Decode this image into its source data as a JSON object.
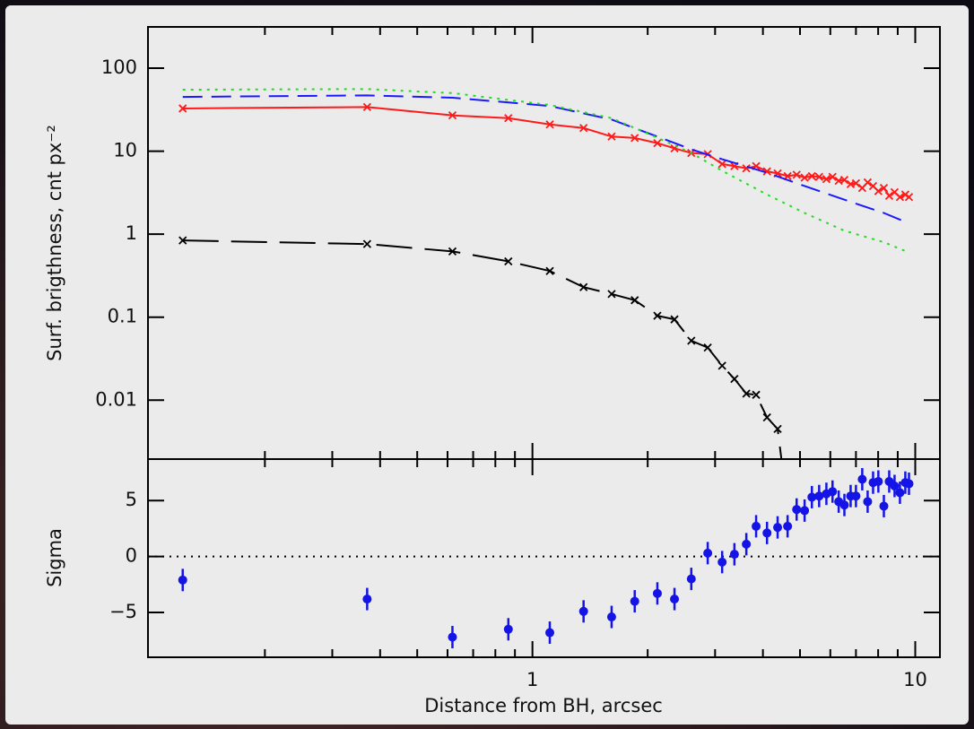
{
  "chart_data": [
    {
      "type": "line",
      "ylabel": "Surf. brigthness, cnt px⁻²",
      "xscale": "log",
      "yscale": "log",
      "xlim": [
        0.099,
        11.6
      ],
      "ylim": [
        0.00195,
        314
      ],
      "yticks": [
        100,
        10,
        1,
        0.1,
        0.01
      ],
      "series": [
        {
          "color": "#ff1a1a",
          "line": "solid",
          "marker": "x",
          "x": [
            0.122,
            0.37,
            0.618,
            0.865,
            1.11,
            1.36,
            1.61,
            1.85,
            2.12,
            2.35,
            2.6,
            2.87,
            3.13,
            3.37,
            3.62,
            3.84,
            4.1,
            4.37,
            4.64,
            4.9,
            5.14,
            5.37,
            5.61,
            5.86,
            6.08,
            6.31,
            6.53,
            6.78,
            7.0,
            7.27,
            7.51,
            7.76,
            8.01,
            8.28,
            8.55,
            8.83,
            9.12,
            9.42,
            9.63
          ],
          "values": [
            32.7,
            34,
            27,
            25,
            21,
            19,
            15,
            14.4,
            12.5,
            10.8,
            9.5,
            9.2,
            7.0,
            6.6,
            6.2,
            6.6,
            5.7,
            5.4,
            5.0,
            5.2,
            4.8,
            5.0,
            4.9,
            4.6,
            4.9,
            4.4,
            4.5,
            4.0,
            4.1,
            3.6,
            4.2,
            3.8,
            3.3,
            3.6,
            2.9,
            3.2,
            2.8,
            3.0,
            2.8
          ]
        },
        {
          "color": "#1a1aff",
          "line": "dashed",
          "marker": "none",
          "x": [
            0.122,
            0.37,
            0.62,
            1.11,
            1.61,
            2.12,
            2.6,
            3.13,
            4.1,
            5.14,
            6.53,
            8.28,
            9.63
          ],
          "values": [
            45,
            47,
            44,
            35,
            24,
            15,
            10.5,
            8.0,
            5.5,
            3.8,
            2.6,
            1.8,
            1.35
          ]
        },
        {
          "color": "#22dd22",
          "line": "dotted",
          "marker": "none",
          "x": [
            0.122,
            0.37,
            0.62,
            1.11,
            1.61,
            2.12,
            2.6,
            3.13,
            4.1,
            5.14,
            6.53,
            8.28,
            9.63
          ],
          "values": [
            55,
            56,
            50,
            36,
            25,
            14.5,
            9.5,
            5.8,
            3.0,
            1.8,
            1.1,
            0.8,
            0.6
          ]
        },
        {
          "color": "#000000",
          "line": "long-dashed",
          "marker": "x",
          "x": [
            0.122,
            0.37,
            0.618,
            0.865,
            1.11,
            1.36,
            1.61,
            1.85,
            2.12,
            2.35,
            2.6,
            2.87,
            3.13,
            3.37,
            3.62,
            3.84,
            4.1,
            4.37,
            4.64
          ],
          "values": [
            0.84,
            0.76,
            0.62,
            0.47,
            0.36,
            0.23,
            0.19,
            0.16,
            0.104,
            0.094,
            0.052,
            0.043,
            0.026,
            0.018,
            0.012,
            0.0116,
            0.0062,
            0.0045,
            0.0005
          ]
        }
      ]
    },
    {
      "type": "errorbar",
      "xlabel": "Distance from BH, arcsec",
      "ylabel": "Sigma",
      "xscale": "log",
      "xlim": [
        0.099,
        11.6
      ],
      "ylim": [
        -9,
        8.7
      ],
      "xticks": [
        1,
        10
      ],
      "xminorticks": [
        0.2,
        0.3,
        0.4,
        0.5,
        0.6,
        0.7,
        0.8,
        0.9,
        2,
        3,
        4,
        5,
        6,
        7,
        8,
        9
      ],
      "yticks": [
        5,
        0,
        {
          "value": -5,
          "label": "−5"
        }
      ],
      "hline": 0,
      "color": "#1414e6",
      "x": [
        0.122,
        0.37,
        0.618,
        0.865,
        1.11,
        1.36,
        1.61,
        1.85,
        2.12,
        2.35,
        2.6,
        2.87,
        3.13,
        3.37,
        3.62,
        3.84,
        4.1,
        4.37,
        4.64,
        4.9,
        5.14,
        5.37,
        5.61,
        5.86,
        6.08,
        6.31,
        6.53,
        6.78,
        7.0,
        7.27,
        7.51,
        7.76,
        8.01,
        8.28,
        8.55,
        8.83,
        9.12,
        9.42,
        9.63
      ],
      "values": [
        -2.1,
        -3.8,
        -7.2,
        -6.5,
        -6.8,
        -4.9,
        -5.4,
        -4.0,
        -3.3,
        -3.8,
        -2.0,
        0.3,
        -0.5,
        0.2,
        1.1,
        2.7,
        2.1,
        2.6,
        2.7,
        4.2,
        4.1,
        5.3,
        5.4,
        5.6,
        5.8,
        4.9,
        4.6,
        5.4,
        5.4,
        6.9,
        4.9,
        6.6,
        6.7,
        4.5,
        6.7,
        6.3,
        5.7,
        6.6,
        6.5
      ],
      "errors": [
        1,
        1,
        1,
        1,
        1,
        1,
        1,
        1,
        1,
        1,
        1,
        1,
        1,
        1,
        1,
        1,
        1,
        1,
        1,
        1,
        1,
        1,
        1,
        1,
        1,
        1,
        1,
        1,
        1,
        1,
        1,
        1,
        1,
        1,
        1,
        1,
        1,
        1,
        1
      ]
    }
  ]
}
